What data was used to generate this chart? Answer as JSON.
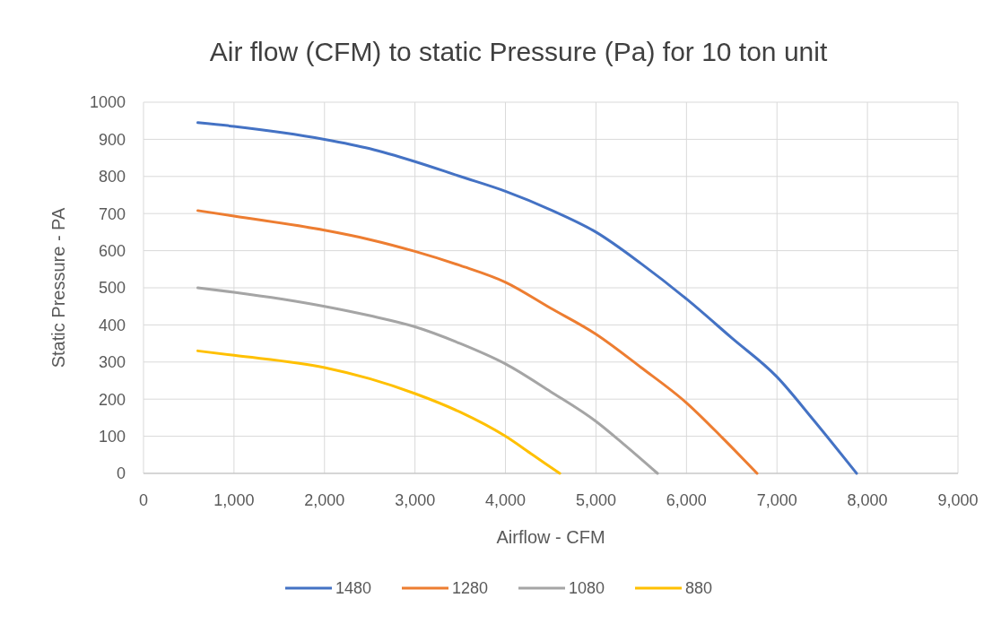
{
  "chart_data": {
    "type": "line",
    "title": "Air flow (CFM) to static Pressure (Pa) for 10 ton unit",
    "xlabel": "Airflow - CFM",
    "ylabel": "Static Pressure - PA",
    "xlim": [
      0,
      9000
    ],
    "xticks": [
      {
        "value": 0,
        "label": "0"
      },
      {
        "value": 1000,
        "label": "1,000"
      },
      {
        "value": 2000,
        "label": "2,000"
      },
      {
        "value": 3000,
        "label": "3,000"
      },
      {
        "value": 4000,
        "label": "4,000"
      },
      {
        "value": 5000,
        "label": "5,000"
      },
      {
        "value": 6000,
        "label": "6,000"
      },
      {
        "value": 7000,
        "label": "7,000"
      },
      {
        "value": 8000,
        "label": "8,000"
      },
      {
        "value": 9000,
        "label": "9,000"
      }
    ],
    "ylim": [
      0,
      1000
    ],
    "yticks": [
      0,
      100,
      200,
      300,
      400,
      500,
      600,
      700,
      800,
      900,
      1000
    ],
    "grid": true,
    "legend": "bottom",
    "marker": "none",
    "line_style": "solid",
    "series": [
      {
        "name": "1480",
        "color": "#4472c4",
        "x": [
          600,
          1000,
          2000,
          2500,
          3000,
          3500,
          4000,
          4500,
          5000,
          5500,
          6000,
          6500,
          7000,
          7400,
          7880
        ],
        "values": [
          945,
          935,
          900,
          875,
          840,
          800,
          760,
          710,
          650,
          565,
          470,
          365,
          260,
          145,
          0
        ]
      },
      {
        "name": "1280",
        "color": "#ed7d31",
        "x": [
          600,
          1000,
          2000,
          2500,
          3000,
          3500,
          4000,
          4500,
          5000,
          5500,
          6000,
          6400,
          6780
        ],
        "values": [
          708,
          693,
          655,
          630,
          598,
          560,
          515,
          445,
          375,
          285,
          190,
          95,
          0
        ]
      },
      {
        "name": "1080",
        "color": "#a5a5a5",
        "x": [
          600,
          1000,
          2000,
          2500,
          3000,
          3500,
          4000,
          4500,
          5000,
          5300,
          5680
        ],
        "values": [
          500,
          488,
          450,
          425,
          395,
          350,
          295,
          220,
          140,
          80,
          0
        ]
      },
      {
        "name": "880",
        "color": "#ffc000",
        "x": [
          600,
          1000,
          2000,
          2500,
          3000,
          3500,
          4000,
          4300,
          4600
        ],
        "values": [
          330,
          318,
          285,
          255,
          215,
          165,
          100,
          50,
          0
        ]
      }
    ]
  }
}
